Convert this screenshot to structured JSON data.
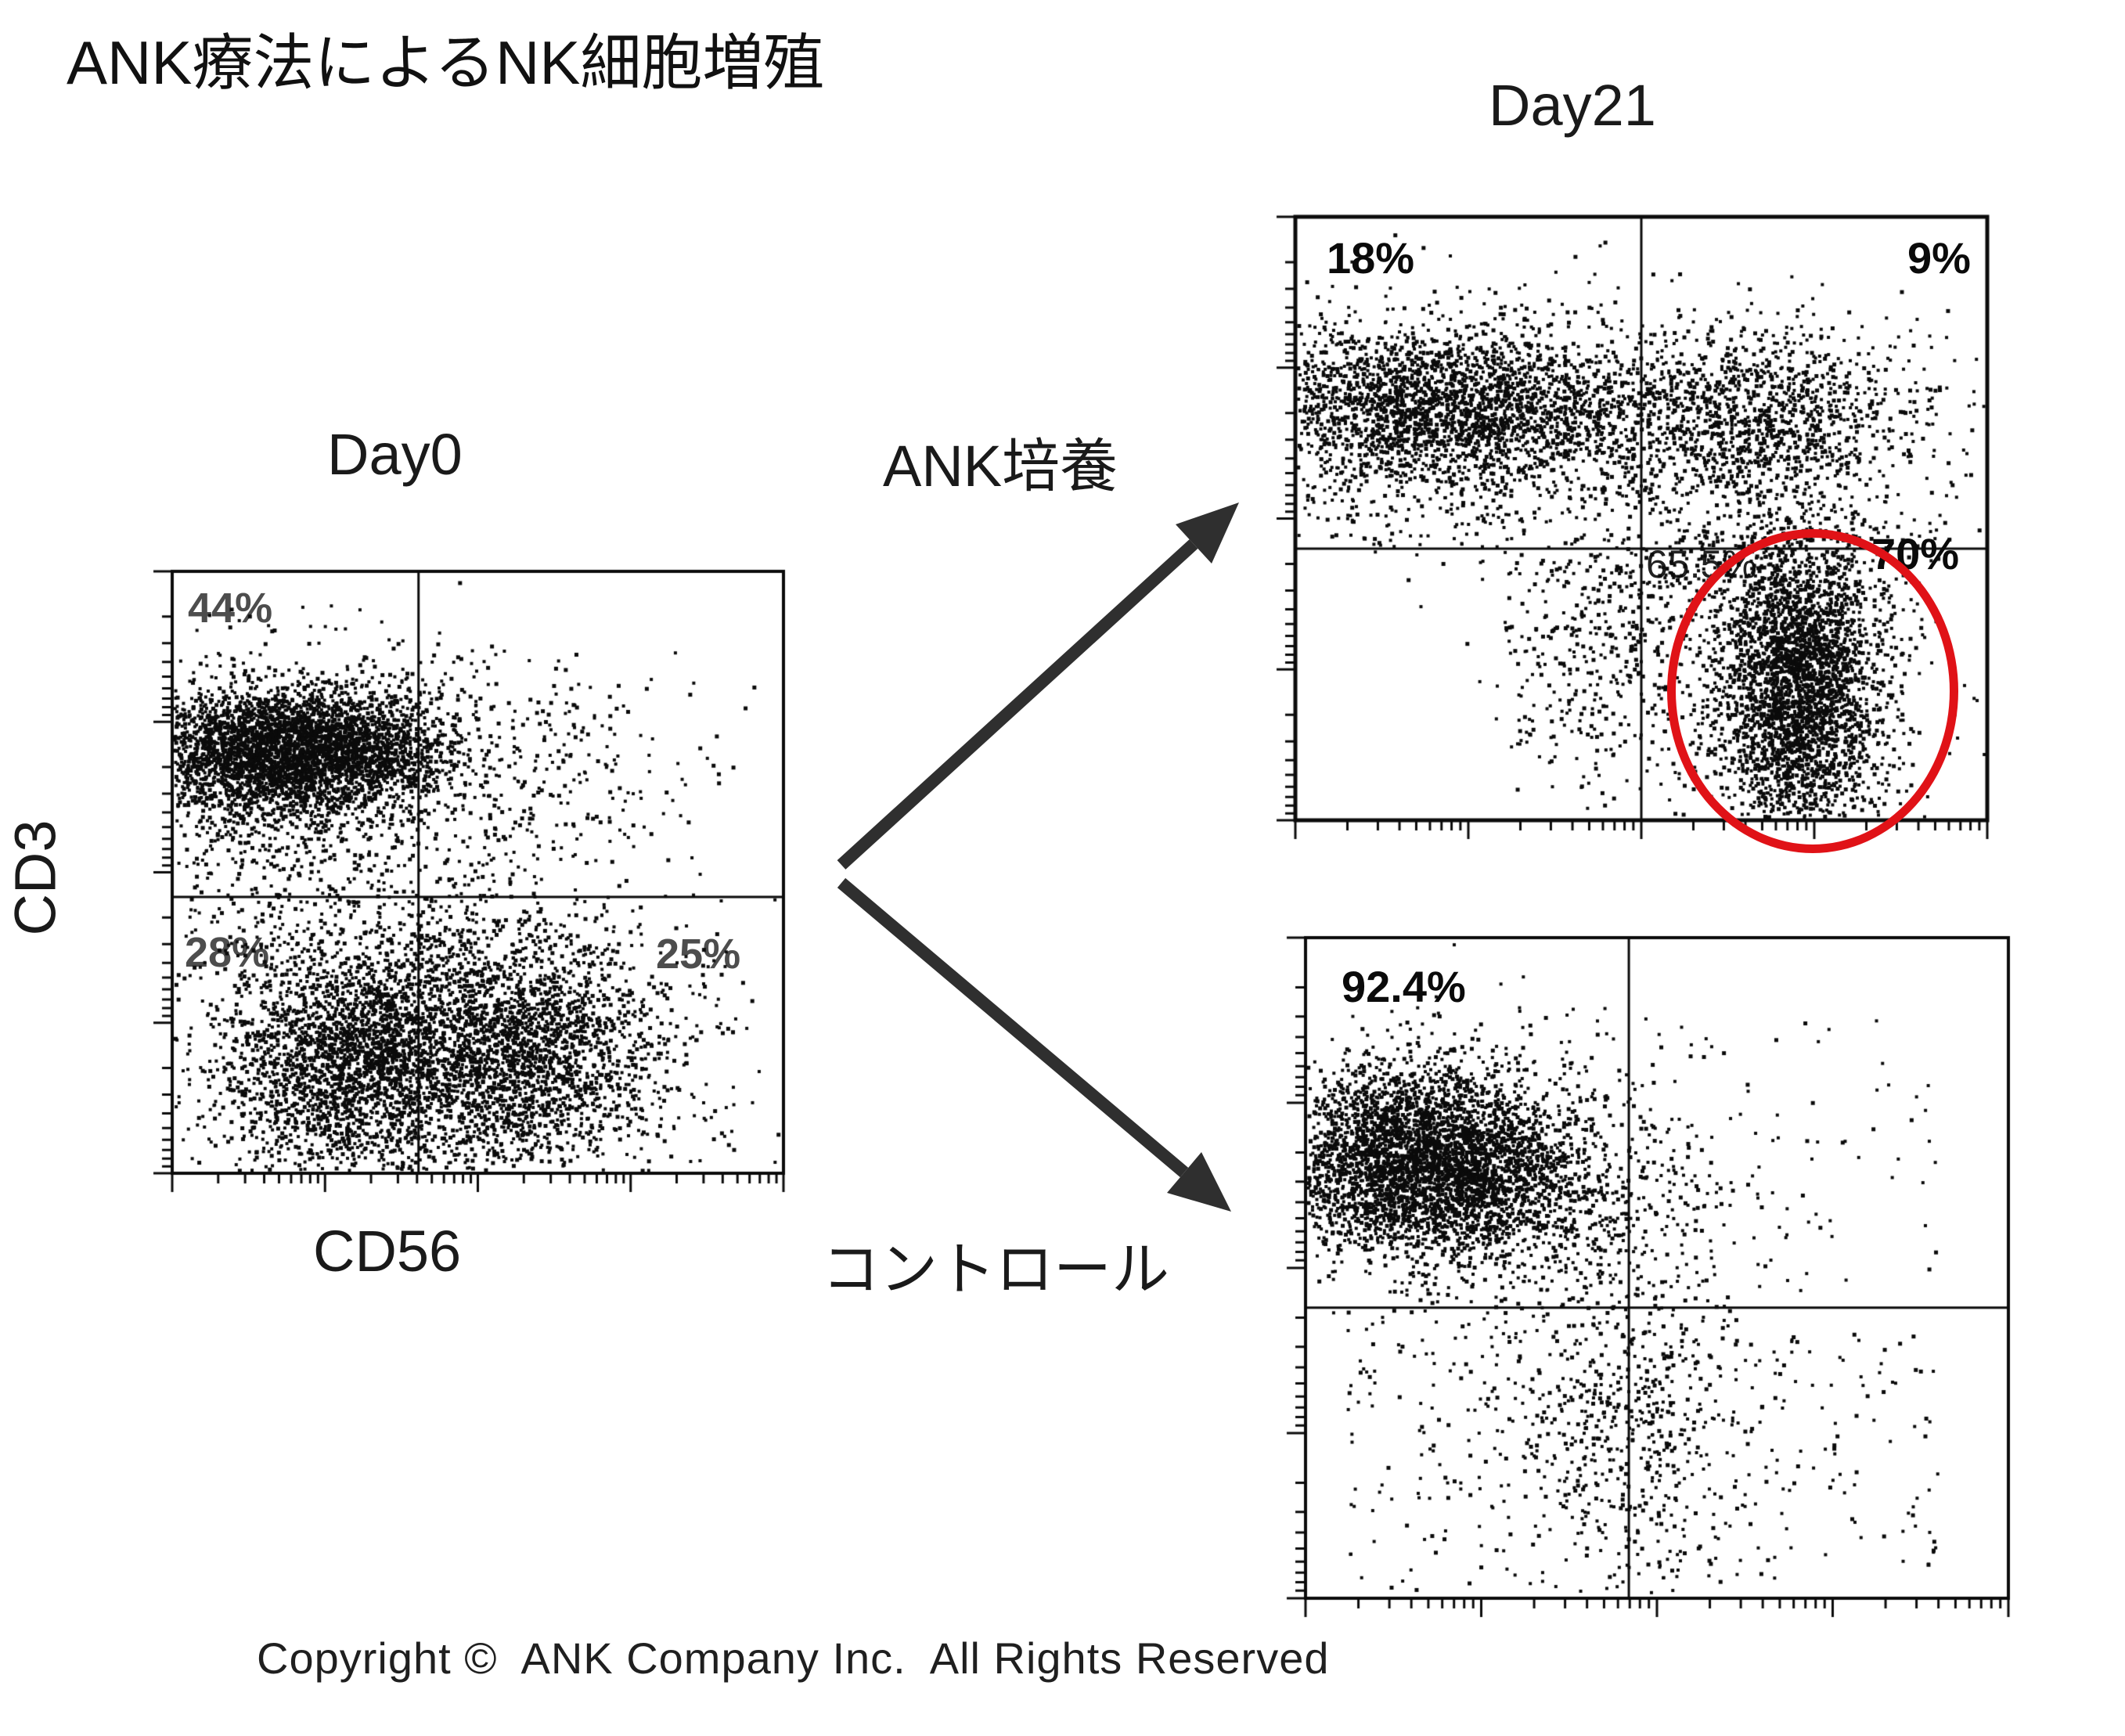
{
  "title": "ANK療法によるNK細胞増殖",
  "labels": {
    "ank_culture": "ANK培養",
    "control": "コントロール"
  },
  "footer": "Copyright ©  ANK Company Inc.  All Rights Reserved",
  "colors": {
    "ink": "#0b0b0b",
    "gray_label": "#4d4d4d",
    "highlight_red": "#e01217",
    "arrow": "#2f2f2f",
    "background": "#ffffff"
  },
  "chart_data": [
    {
      "id": "day0",
      "type": "scatter",
      "title": "Day0",
      "xlabel": "CD56",
      "ylabel": "CD3",
      "axis": {
        "x_scale": "log",
        "y_scale": "log",
        "decades": 4,
        "tick_labels": "none"
      },
      "quadrant_gate": {
        "x": 0.403,
        "y": 0.541
      },
      "quadrants": [
        {
          "pos": "upper-left",
          "text": "44%"
        },
        {
          "pos": "lower-left",
          "text": "28%"
        },
        {
          "pos": "lower-right",
          "text": "25%"
        }
      ],
      "clusters": [
        {
          "d": "g",
          "x": 0.16,
          "y": 0.295,
          "sx": 0.115,
          "sy": 0.05,
          "n": 2600,
          "note": "CD3+CD56- dense band"
        },
        {
          "d": "g",
          "x": 0.3,
          "y": 0.3,
          "sx": 0.08,
          "sy": 0.05,
          "n": 900
        },
        {
          "d": "g",
          "x": 0.2,
          "y": 0.315,
          "sx": 0.17,
          "sy": 0.09,
          "n": 900
        },
        {
          "d": "g",
          "x": 0.17,
          "y": 0.47,
          "sx": 0.13,
          "sy": 0.09,
          "n": 220
        },
        {
          "d": "g",
          "x": 0.6,
          "y": 0.33,
          "sx": 0.13,
          "sy": 0.1,
          "n": 300,
          "note": "upper-right scatter"
        },
        {
          "d": "g",
          "x": 0.3,
          "y": 0.815,
          "sx": 0.095,
          "sy": 0.095,
          "n": 1900,
          "note": "lower-left cloud"
        },
        {
          "d": "g",
          "x": 0.27,
          "y": 0.79,
          "sx": 0.15,
          "sy": 0.125,
          "n": 800
        },
        {
          "d": "g",
          "x": 0.565,
          "y": 0.8,
          "sx": 0.105,
          "sy": 0.095,
          "n": 1700,
          "note": "CD56+ lower cloud"
        },
        {
          "d": "g",
          "x": 0.58,
          "y": 0.79,
          "sx": 0.16,
          "sy": 0.13,
          "n": 700
        },
        {
          "d": "u",
          "x0": 0.02,
          "x1": 0.95,
          "y0": 0.56,
          "y1": 0.99,
          "n": 260
        },
        {
          "d": "u",
          "x0": 0.02,
          "x1": 0.4,
          "y0": 0.06,
          "y1": 0.55,
          "n": 120
        },
        {
          "d": "g",
          "x": 0.47,
          "y": 0.6,
          "sx": 0.06,
          "sy": 0.07,
          "n": 120
        }
      ]
    },
    {
      "id": "ank-day21",
      "type": "scatter",
      "title": "Day21",
      "xlabel": "CD56",
      "ylabel": "CD3",
      "axis": {
        "x_scale": "log",
        "y_scale": "log",
        "decades": 4,
        "tick_labels": "none"
      },
      "quadrant_gate": {
        "x": 0.5,
        "y": 0.55
      },
      "quadrants": [
        {
          "pos": "upper-left",
          "text": "18%"
        },
        {
          "pos": "upper-right",
          "text": "9%"
        },
        {
          "pos": "gate",
          "text": "65.5%"
        },
        {
          "pos": "lower-right",
          "text": "70%"
        }
      ],
      "highlight": {
        "shape": "ellipse",
        "meaning": "expanded NK cell population",
        "color": "#e01217"
      },
      "clusters": [
        {
          "d": "g",
          "x": 0.21,
          "y": 0.315,
          "sx": 0.15,
          "sy": 0.065,
          "n": 2400,
          "note": "CD3+ band left"
        },
        {
          "d": "g",
          "x": 0.25,
          "y": 0.34,
          "sx": 0.2,
          "sy": 0.1,
          "n": 800
        },
        {
          "d": "g",
          "x": 0.67,
          "y": 0.33,
          "sx": 0.12,
          "sy": 0.07,
          "n": 1000,
          "note": "band continues upper-right"
        },
        {
          "d": "g",
          "x": 0.7,
          "y": 0.36,
          "sx": 0.15,
          "sy": 0.1,
          "n": 300
        },
        {
          "d": "g",
          "x": 0.73,
          "y": 0.78,
          "sx": 0.055,
          "sy": 0.125,
          "n": 2700,
          "note": "NK blob in red circle"
        },
        {
          "d": "g",
          "x": 0.72,
          "y": 0.76,
          "sx": 0.1,
          "sy": 0.16,
          "n": 800
        },
        {
          "d": "g",
          "x": 0.44,
          "y": 0.7,
          "sx": 0.07,
          "sy": 0.11,
          "n": 300
        },
        {
          "d": "u",
          "x0": 0.3,
          "x1": 0.5,
          "y0": 0.55,
          "y1": 0.95,
          "n": 90
        },
        {
          "d": "u",
          "x0": 0.05,
          "x1": 0.95,
          "y0": 0.42,
          "y1": 0.55,
          "n": 120
        },
        {
          "d": "g",
          "x": 0.62,
          "y": 0.6,
          "sx": 0.1,
          "sy": 0.06,
          "n": 200
        }
      ]
    },
    {
      "id": "control",
      "type": "scatter",
      "title": "",
      "xlabel": "CD56",
      "ylabel": "CD3",
      "axis": {
        "x_scale": "log",
        "y_scale": "log",
        "decades": 4,
        "tick_labels": "none"
      },
      "quadrant_gate": {
        "x": 0.46,
        "y": 0.56
      },
      "quadrants": [
        {
          "pos": "upper-left",
          "text": "92.4%"
        }
      ],
      "clusters": [
        {
          "d": "g",
          "x": 0.155,
          "y": 0.335,
          "sx": 0.095,
          "sy": 0.07,
          "n": 3000,
          "note": "CD3+ dominant blob"
        },
        {
          "d": "g",
          "x": 0.26,
          "y": 0.36,
          "sx": 0.07,
          "sy": 0.06,
          "n": 600
        },
        {
          "d": "g",
          "x": 0.21,
          "y": 0.35,
          "sx": 0.16,
          "sy": 0.105,
          "n": 1000
        },
        {
          "d": "g",
          "x": 0.43,
          "y": 0.42,
          "sx": 0.09,
          "sy": 0.08,
          "n": 280
        },
        {
          "d": "u",
          "x0": 0.5,
          "x1": 0.9,
          "y0": 0.12,
          "y1": 0.54,
          "n": 70
        },
        {
          "d": "g",
          "x": 0.46,
          "y": 0.73,
          "sx": 0.085,
          "sy": 0.12,
          "n": 500
        },
        {
          "d": "u",
          "x0": 0.06,
          "x1": 0.55,
          "y0": 0.58,
          "y1": 0.99,
          "n": 230
        },
        {
          "d": "u",
          "x0": 0.47,
          "x1": 0.9,
          "y0": 0.6,
          "y1": 0.98,
          "n": 140
        }
      ]
    }
  ]
}
